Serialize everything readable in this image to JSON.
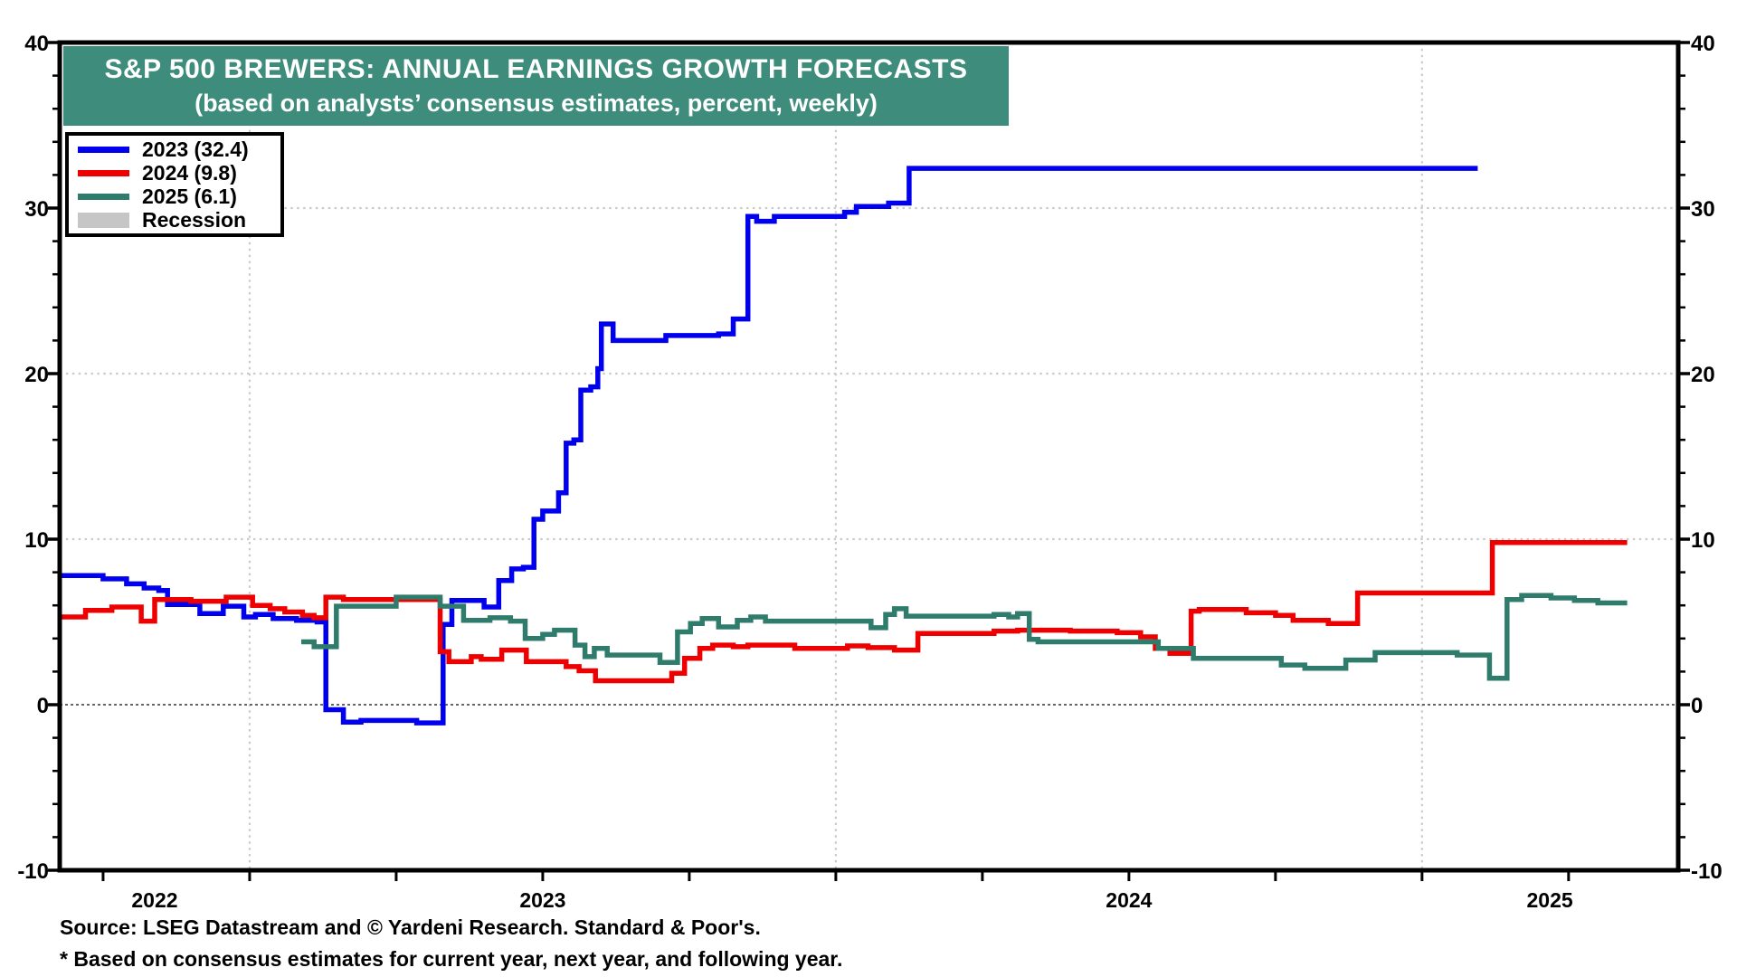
{
  "title": {
    "line1": "S&P 500 BREWERS: ANNUAL EARNINGS GROWTH FORECASTS",
    "line2": "(based on analysts’ consensus estimates, percent, weekly)",
    "bg_color": "#3E8C7B",
    "text_color": "#FFFFFF"
  },
  "legend": {
    "items": [
      {
        "label": "2023 (32.4)",
        "color": "#0000EE",
        "type": "line"
      },
      {
        "label": "2024 (9.8)",
        "color": "#EE0000",
        "type": "line"
      },
      {
        "label": "2025 (6.1)",
        "color": "#2F7C6C",
        "type": "line"
      },
      {
        "label": "Recession",
        "color": "#C6C6C6",
        "type": "patch"
      }
    ]
  },
  "footer": {
    "source": "Source: LSEG Datastream and © Yardeni Research. Standard & Poor's.",
    "note": "* Based on consensus estimates for current year, next year, and following year."
  },
  "chart_data": {
    "type": "line",
    "title": "S&P 500 Brewers: Annual Earnings Growth Forecasts",
    "subtitle": "based on analysts' consensus estimates, percent, weekly",
    "grid": "dotted",
    "legend_position": "top-left",
    "x_axis": {
      "start": 2022.676,
      "end": 2025.437,
      "year_gridlines": [
        2023,
        2024,
        2025
      ],
      "minor_tick_interval": 0.25,
      "year_labels": [
        {
          "text": "2022",
          "t": 2022.838
        },
        {
          "text": "2023",
          "t": 2023.5
        },
        {
          "text": "2024",
          "t": 2024.5
        },
        {
          "text": "2025",
          "t": 2025.218
        }
      ]
    },
    "y_axis": {
      "min": -10,
      "max": 40,
      "major_ticks": [
        40,
        30,
        20,
        10,
        0,
        -10
      ],
      "minor_step": 2,
      "dotted_gridlines": [
        30,
        20,
        10
      ],
      "zero_line": 0,
      "labels_both_sides": true
    },
    "series": [
      {
        "name": "2023",
        "final_value": 32.4,
        "color": "#0000EE",
        "end_t": 2025.095,
        "points": [
          [
            2022.676,
            7.8
          ],
          [
            2022.75,
            7.6
          ],
          [
            2022.79,
            7.3
          ],
          [
            2022.82,
            7.05
          ],
          [
            2022.845,
            6.9
          ],
          [
            2022.86,
            6.05
          ],
          [
            2022.915,
            5.5
          ],
          [
            2022.955,
            5.95
          ],
          [
            2022.99,
            5.3
          ],
          [
            2023.01,
            5.45
          ],
          [
            2023.04,
            5.2
          ],
          [
            2023.08,
            5.1
          ],
          [
            2023.115,
            5.0
          ],
          [
            2023.13,
            -0.3
          ],
          [
            2023.16,
            -1.05
          ],
          [
            2023.19,
            -0.95
          ],
          [
            2023.285,
            -1.1
          ],
          [
            2023.33,
            4.85
          ],
          [
            2023.345,
            6.3
          ],
          [
            2023.4,
            5.9
          ],
          [
            2023.425,
            7.5
          ],
          [
            2023.447,
            8.2
          ],
          [
            2023.467,
            8.3
          ],
          [
            2023.485,
            11.2
          ],
          [
            2023.5,
            11.7
          ],
          [
            2023.527,
            12.8
          ],
          [
            2023.54,
            15.8
          ],
          [
            2023.553,
            16.0
          ],
          [
            2023.565,
            19.0
          ],
          [
            2023.582,
            19.2
          ],
          [
            2023.594,
            20.3
          ],
          [
            2023.6,
            23.0
          ],
          [
            2023.62,
            22.0
          ],
          [
            2023.71,
            22.3
          ],
          [
            2023.8,
            22.4
          ],
          [
            2023.825,
            23.3
          ],
          [
            2023.85,
            29.5
          ],
          [
            2023.865,
            29.2
          ],
          [
            2023.895,
            29.5
          ],
          [
            2024.015,
            29.75
          ],
          [
            2024.035,
            30.1
          ],
          [
            2024.09,
            30.3
          ],
          [
            2024.125,
            32.4
          ]
        ]
      },
      {
        "name": "2024",
        "final_value": 9.8,
        "color": "#EE0000",
        "end_t": 2025.35,
        "points": [
          [
            2022.676,
            5.3
          ],
          [
            2022.72,
            5.7
          ],
          [
            2022.765,
            5.9
          ],
          [
            2022.815,
            5.05
          ],
          [
            2022.838,
            6.35
          ],
          [
            2022.9,
            6.25
          ],
          [
            2022.96,
            6.5
          ],
          [
            2023.005,
            6.0
          ],
          [
            2023.035,
            5.8
          ],
          [
            2023.06,
            5.6
          ],
          [
            2023.09,
            5.4
          ],
          [
            2023.11,
            5.25
          ],
          [
            2023.13,
            6.5
          ],
          [
            2023.16,
            6.35
          ],
          [
            2023.325,
            3.2
          ],
          [
            2023.34,
            2.6
          ],
          [
            2023.378,
            2.9
          ],
          [
            2023.395,
            2.75
          ],
          [
            2023.43,
            3.3
          ],
          [
            2023.472,
            2.6
          ],
          [
            2023.54,
            2.3
          ],
          [
            2023.562,
            2.05
          ],
          [
            2023.59,
            1.45
          ],
          [
            2023.72,
            1.9
          ],
          [
            2023.742,
            2.8
          ],
          [
            2023.768,
            3.4
          ],
          [
            2023.79,
            3.6
          ],
          [
            2023.825,
            3.5
          ],
          [
            2023.85,
            3.6
          ],
          [
            2023.93,
            3.4
          ],
          [
            2024.02,
            3.55
          ],
          [
            2024.055,
            3.45
          ],
          [
            2024.1,
            3.3
          ],
          [
            2024.14,
            4.3
          ],
          [
            2024.27,
            4.45
          ],
          [
            2024.31,
            4.5
          ],
          [
            2024.4,
            4.45
          ],
          [
            2024.48,
            4.35
          ],
          [
            2024.52,
            4.1
          ],
          [
            2024.545,
            3.4
          ],
          [
            2024.57,
            3.1
          ],
          [
            2024.606,
            5.65
          ],
          [
            2024.62,
            5.75
          ],
          [
            2024.7,
            5.55
          ],
          [
            2024.75,
            5.4
          ],
          [
            2024.78,
            5.1
          ],
          [
            2024.84,
            4.9
          ],
          [
            2024.89,
            6.75
          ],
          [
            2025.12,
            9.8
          ]
        ]
      },
      {
        "name": "2025",
        "final_value": 6.1,
        "color": "#2F7C6C",
        "end_t": 2025.35,
        "points": [
          [
            2023.088,
            3.8
          ],
          [
            2023.11,
            3.5
          ],
          [
            2023.148,
            5.95
          ],
          [
            2023.25,
            6.5
          ],
          [
            2023.325,
            5.95
          ],
          [
            2023.365,
            5.1
          ],
          [
            2023.41,
            5.25
          ],
          [
            2023.445,
            5.05
          ],
          [
            2023.47,
            4.0
          ],
          [
            2023.5,
            4.25
          ],
          [
            2023.52,
            4.5
          ],
          [
            2023.555,
            3.6
          ],
          [
            2023.572,
            2.9
          ],
          [
            2023.588,
            3.4
          ],
          [
            2023.61,
            3.0
          ],
          [
            2023.7,
            2.55
          ],
          [
            2023.73,
            4.4
          ],
          [
            2023.752,
            4.9
          ],
          [
            2023.772,
            5.2
          ],
          [
            2023.8,
            4.7
          ],
          [
            2023.832,
            5.1
          ],
          [
            2023.855,
            5.3
          ],
          [
            2023.88,
            5.05
          ],
          [
            2024.06,
            4.65
          ],
          [
            2024.085,
            5.45
          ],
          [
            2024.1,
            5.8
          ],
          [
            2024.12,
            5.35
          ],
          [
            2024.27,
            5.45
          ],
          [
            2024.295,
            5.3
          ],
          [
            2024.31,
            5.5
          ],
          [
            2024.33,
            3.95
          ],
          [
            2024.345,
            3.8
          ],
          [
            2024.55,
            3.4
          ],
          [
            2024.61,
            2.8
          ],
          [
            2024.76,
            2.4
          ],
          [
            2024.8,
            2.2
          ],
          [
            2024.87,
            2.7
          ],
          [
            2024.92,
            3.15
          ],
          [
            2025.06,
            3.0
          ],
          [
            2025.115,
            1.6
          ],
          [
            2025.145,
            6.35
          ],
          [
            2025.17,
            6.6
          ],
          [
            2025.22,
            6.45
          ],
          [
            2025.26,
            6.3
          ],
          [
            2025.3,
            6.15
          ]
        ]
      }
    ]
  }
}
